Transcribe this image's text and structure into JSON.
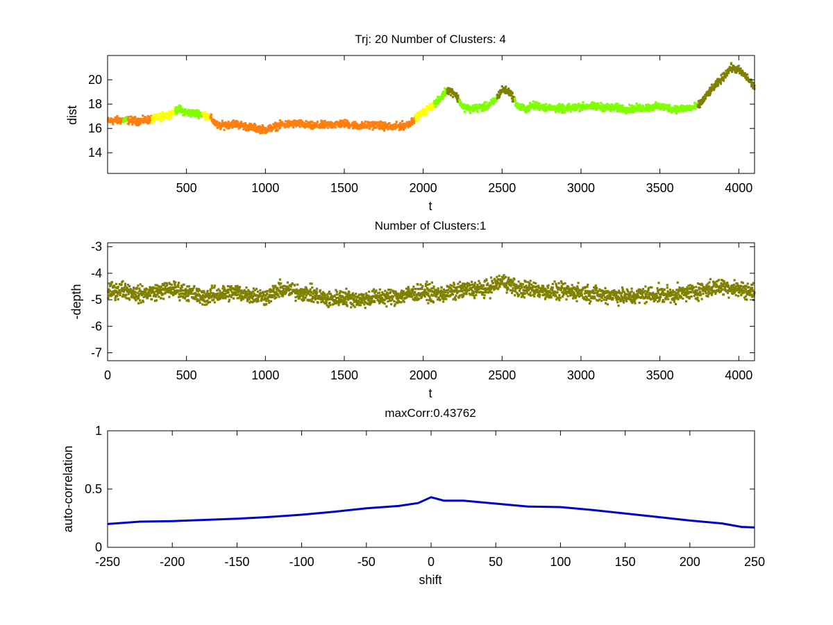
{
  "chart_data": [
    {
      "type": "scatter",
      "title": "Trj: 20 Number of Clusters: 4",
      "xlabel": "t",
      "ylabel": "dist",
      "xlim": [
        0,
        4100
      ],
      "ylim": [
        12.3,
        22
      ],
      "xticks": [
        500,
        1000,
        1500,
        2000,
        2500,
        3000,
        3500,
        4000
      ],
      "xtick_labels": [
        "500",
        "1000",
        "1500",
        "2000",
        "2500",
        "3000",
        "3500",
        "4000"
      ],
      "yticks": [
        14,
        16,
        18,
        20
      ],
      "ytick_labels": [
        "14",
        "16",
        "18",
        "20"
      ],
      "clusters": [
        {
          "name": "cluster-orange",
          "color": "#ff7f0e"
        },
        {
          "name": "cluster-yellow",
          "color": "#ffff00"
        },
        {
          "name": "cluster-green",
          "color": "#7fff00"
        },
        {
          "name": "cluster-olive",
          "color": "#808000"
        }
      ],
      "series": [
        {
          "name": "dist",
          "x": [
            0,
            100,
            200,
            300,
            400,
            450,
            500,
            600,
            650,
            700,
            800,
            900,
            1000,
            1100,
            1200,
            1300,
            1400,
            1500,
            1600,
            1700,
            1800,
            1900,
            1950,
            2000,
            2050,
            2100,
            2150,
            2200,
            2250,
            2300,
            2350,
            2400,
            2450,
            2500,
            2550,
            2600,
            2650,
            2700,
            2800,
            2900,
            3000,
            3100,
            3200,
            3300,
            3400,
            3500,
            3600,
            3700,
            3750,
            3800,
            3900,
            3950,
            4000,
            4050,
            4100
          ],
          "y": [
            16.6,
            16.7,
            16.6,
            16.8,
            17.2,
            17.6,
            17.3,
            17.2,
            16.9,
            16.2,
            16.4,
            16.1,
            15.9,
            16.3,
            16.4,
            16.2,
            16.3,
            16.4,
            16.2,
            16.3,
            16.1,
            16.3,
            16.8,
            17.3,
            17.8,
            18.3,
            19.2,
            18.9,
            17.8,
            17.6,
            17.7,
            17.8,
            18.2,
            19.2,
            19.0,
            17.8,
            17.6,
            17.9,
            17.7,
            17.6,
            17.8,
            17.8,
            17.7,
            17.6,
            17.7,
            17.8,
            17.6,
            17.7,
            17.9,
            18.8,
            20.2,
            21.0,
            20.8,
            20.2,
            19.4
          ]
        }
      ],
      "cluster_segments": [
        {
          "from": 0,
          "to": 100,
          "cluster": 0
        },
        {
          "from": 100,
          "to": 130,
          "cluster": 2
        },
        {
          "from": 130,
          "to": 280,
          "cluster": 0
        },
        {
          "from": 280,
          "to": 430,
          "cluster": 1
        },
        {
          "from": 430,
          "to": 600,
          "cluster": 2
        },
        {
          "from": 600,
          "to": 650,
          "cluster": 1
        },
        {
          "from": 650,
          "to": 1950,
          "cluster": 0
        },
        {
          "from": 1950,
          "to": 2070,
          "cluster": 1
        },
        {
          "from": 2070,
          "to": 2150,
          "cluster": 2
        },
        {
          "from": 2150,
          "to": 2230,
          "cluster": 3
        },
        {
          "from": 2230,
          "to": 2470,
          "cluster": 2
        },
        {
          "from": 2470,
          "to": 2580,
          "cluster": 3
        },
        {
          "from": 2580,
          "to": 3740,
          "cluster": 2
        },
        {
          "from": 3740,
          "to": 4100,
          "cluster": 3
        }
      ]
    },
    {
      "type": "scatter",
      "title": "Number of Clusters:1",
      "xlabel": "t",
      "ylabel": "-depth",
      "xlim": [
        0,
        4100
      ],
      "ylim": [
        -7.3,
        -2.85
      ],
      "xticks": [
        0,
        500,
        1000,
        1500,
        2000,
        2500,
        3000,
        3500,
        4000
      ],
      "xtick_labels": [
        "0",
        "500",
        "1000",
        "1500",
        "2000",
        "2500",
        "3000",
        "3500",
        "4000"
      ],
      "yticks": [
        -7,
        -6,
        -5,
        -4,
        -3
      ],
      "ytick_labels": [
        "-7",
        "-6",
        "-5",
        "-4",
        "-3"
      ],
      "color": "#808000",
      "series": [
        {
          "name": "-depth",
          "x": [
            0,
            100,
            200,
            300,
            400,
            500,
            600,
            700,
            800,
            900,
            1000,
            1100,
            1200,
            1300,
            1400,
            1500,
            1600,
            1700,
            1800,
            1900,
            2000,
            2100,
            2200,
            2300,
            2400,
            2500,
            2550,
            2600,
            2700,
            2800,
            2900,
            3000,
            3100,
            3200,
            3300,
            3400,
            3500,
            3600,
            3700,
            3800,
            3900,
            4000,
            4100
          ],
          "y": [
            -4.7,
            -4.6,
            -4.8,
            -4.7,
            -4.6,
            -4.7,
            -4.9,
            -4.8,
            -4.7,
            -4.8,
            -4.9,
            -4.6,
            -4.7,
            -4.8,
            -5.0,
            -4.9,
            -5.0,
            -4.9,
            -4.9,
            -4.8,
            -4.7,
            -4.8,
            -4.7,
            -4.6,
            -4.6,
            -4.3,
            -4.4,
            -4.6,
            -4.6,
            -4.7,
            -4.7,
            -4.7,
            -4.8,
            -4.8,
            -4.9,
            -4.8,
            -4.8,
            -4.8,
            -4.7,
            -4.6,
            -4.5,
            -4.6,
            -4.7
          ]
        }
      ]
    },
    {
      "type": "line",
      "title": "maxCorr:0.43762",
      "xlabel": "shift",
      "ylabel": "auto-correlation",
      "xlim": [
        -250,
        250
      ],
      "ylim": [
        0,
        1
      ],
      "xticks": [
        -250,
        -200,
        -150,
        -100,
        -50,
        0,
        50,
        100,
        150,
        200,
        250
      ],
      "xtick_labels": [
        "-250",
        "-200",
        "-150",
        "-100",
        "-50",
        "0",
        "50",
        "100",
        "150",
        "200",
        "250"
      ],
      "yticks": [
        0,
        0.5,
        1
      ],
      "ytick_labels": [
        "0",
        "0.5",
        "1"
      ],
      "color": "#0000cc",
      "series": [
        {
          "name": "auto-correlation",
          "x": [
            -250,
            -225,
            -200,
            -175,
            -150,
            -125,
            -100,
            -75,
            -50,
            -25,
            -10,
            0,
            10,
            25,
            50,
            75,
            100,
            125,
            150,
            175,
            200,
            225,
            240,
            250
          ],
          "y": [
            0.2,
            0.22,
            0.225,
            0.235,
            0.245,
            0.26,
            0.28,
            0.305,
            0.335,
            0.355,
            0.38,
            0.43,
            0.4,
            0.4,
            0.375,
            0.35,
            0.345,
            0.32,
            0.29,
            0.26,
            0.23,
            0.205,
            0.175,
            0.17
          ]
        }
      ]
    }
  ]
}
